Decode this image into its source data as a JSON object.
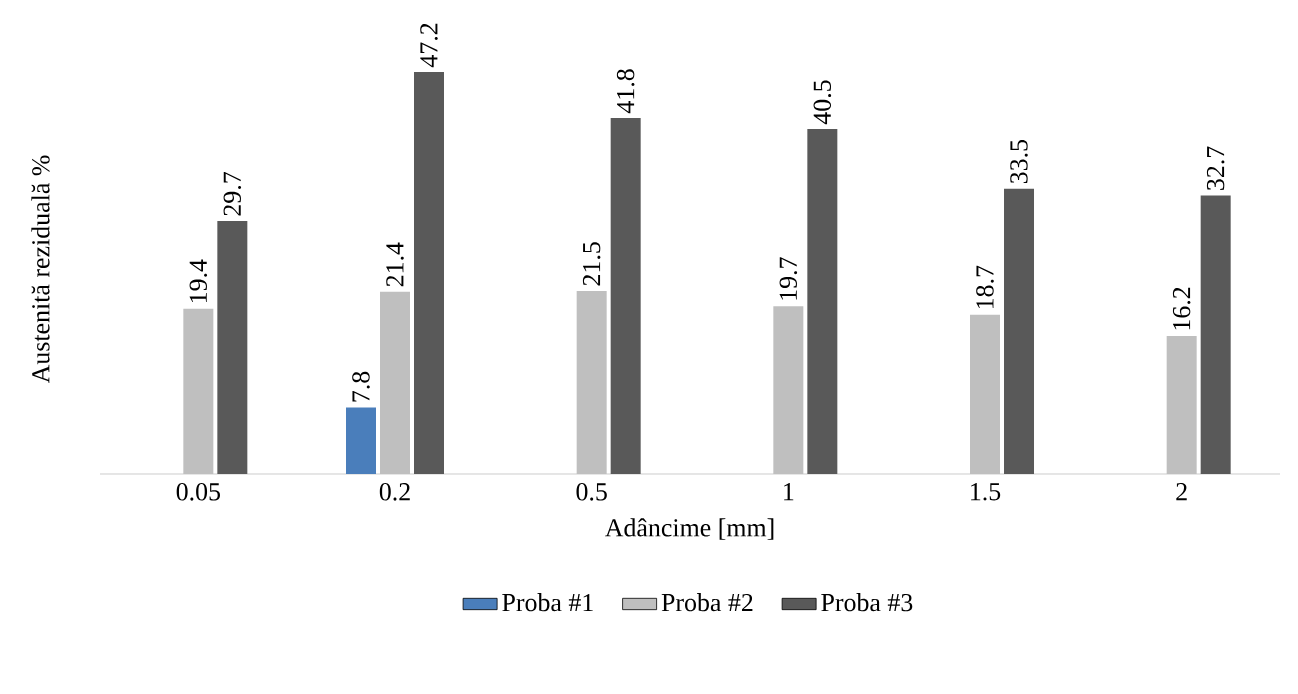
{
  "chart_data": {
    "type": "bar",
    "xlabel": "Adâncime [mm]",
    "ylabel": "Austenită reziduală %",
    "categories": [
      "0.05",
      "0.2",
      "0.5",
      "1",
      "1.5",
      "2"
    ],
    "series": [
      {
        "name": "Proba #1",
        "color": "#4a7ebb",
        "values": [
          null,
          7.8,
          null,
          null,
          null,
          null
        ]
      },
      {
        "name": "Proba #2",
        "color": "#bfbfbf",
        "values": [
          19.4,
          21.4,
          21.5,
          19.7,
          18.7,
          16.2
        ]
      },
      {
        "name": "Proba #3",
        "color": "#595959",
        "values": [
          29.7,
          47.2,
          41.8,
          40.5,
          33.5,
          32.7
        ]
      }
    ],
    "data_labels": true,
    "legend": "bottom"
  }
}
